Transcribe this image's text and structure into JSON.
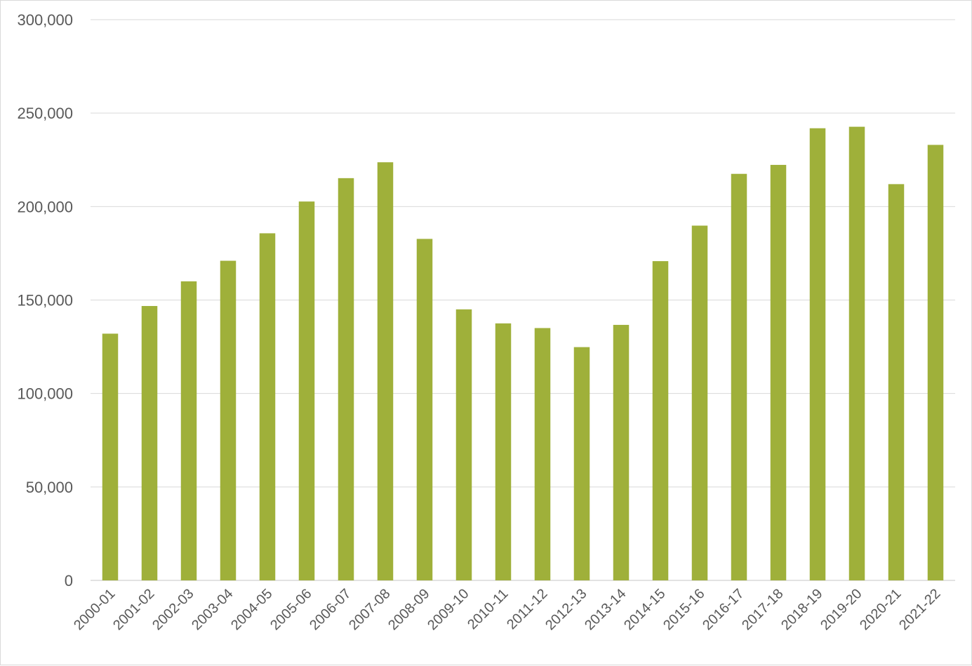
{
  "chart_data": {
    "type": "bar",
    "categories": [
      "2000-01",
      "2001-02",
      "2002-03",
      "2003-04",
      "2004-05",
      "2005-06",
      "2006-07",
      "2007-08",
      "2008-09",
      "2009-10",
      "2010-11",
      "2011-12",
      "2012-13",
      "2013-14",
      "2014-15",
      "2015-16",
      "2016-17",
      "2017-18",
      "2018-19",
      "2019-20",
      "2020-21",
      "2021-22"
    ],
    "values": [
      132000,
      146800,
      160000,
      171000,
      185700,
      202700,
      215200,
      223700,
      182700,
      145000,
      137500,
      135000,
      124800,
      136700,
      170800,
      189800,
      217500,
      222300,
      241900,
      242700,
      212000,
      233000
    ],
    "title": "",
    "xlabel": "",
    "ylabel": "",
    "ylim": [
      0,
      300000
    ],
    "yticks": [
      0,
      50000,
      100000,
      150000,
      200000,
      250000,
      300000
    ],
    "ytick_labels": [
      "0",
      "50,000",
      "100,000",
      "150,000",
      "200,000",
      "250,000",
      "300,000"
    ],
    "grid": true,
    "legend": "none",
    "bar_color": "#9fb03a",
    "grid_color": "#d9d9d9",
    "text_color": "#595959"
  }
}
